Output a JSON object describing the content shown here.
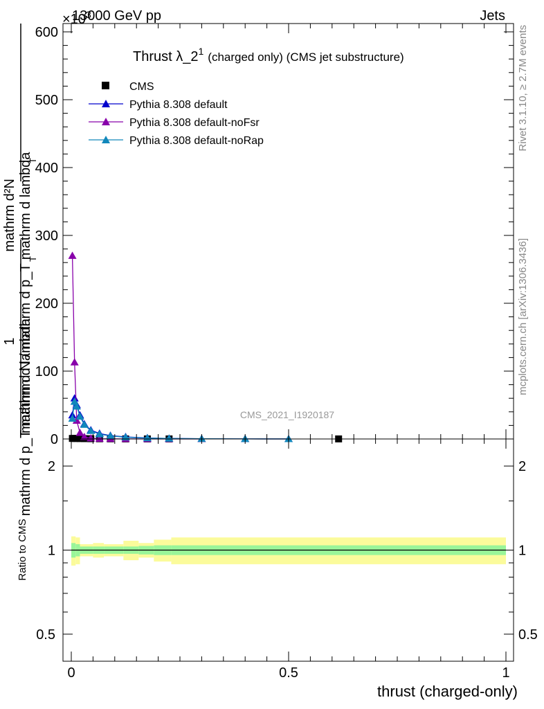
{
  "header": {
    "left": "13000 GeV pp",
    "right": "Jets"
  },
  "side_labels": {
    "rivet": "Rivet 3.1.10, ≥ 2.7M events",
    "mcplots": "mcplots.cern.ch [arXiv:1306.3436]"
  },
  "colors": {
    "cms": "#000000",
    "default": "#0000cc",
    "noFsr": "#8800aa",
    "noRap": "#1188bb",
    "band_inner": "#99f599",
    "band_outer": "#fbfb9b"
  },
  "chart_data": [
    {
      "type": "line",
      "title_main": "Thrust λ_2",
      "title_sup": "1",
      "title_rest": "(charged only) (CMS jet substructure)",
      "exponent_label": "×10",
      "exponent_sup": "3",
      "ylabel_top": "mathrm d²N",
      "ylabel_top_b": "mathrm d p_T mathrm d lambda",
      "ylabel_top_sub": "T",
      "ylabel_one": "1",
      "ylabel_bottom": "mathrm d N / mathrm d p_T mathrm d lambda",
      "ylabel_bottom_sub": "T",
      "watermark": "CMS_2021_I1920187",
      "xlim": [
        0,
        1
      ],
      "ylim": [
        0,
        600
      ],
      "yticks": [
        "0",
        "100",
        "200",
        "300",
        "400",
        "500",
        "600"
      ],
      "yticks_values": [
        0,
        100,
        200,
        300,
        400,
        500,
        600
      ],
      "legend": "top-left",
      "series": [
        {
          "name": "CMS",
          "marker": "square",
          "x": [
            0.0025,
            0.0075,
            0.0125,
            0.02,
            0.03,
            0.045,
            0.065,
            0.09,
            0.125,
            0.175,
            0.225,
            0.615
          ],
          "y": [
            0.8,
            0.8,
            0.8,
            0.6,
            0.5,
            0.4,
            0.3,
            0.2,
            0.1,
            0.1,
            0.1,
            0.1
          ]
        },
        {
          "name": "Pythia 8.308 default",
          "marker": "triangle",
          "x": [
            0.0025,
            0.0075,
            0.0125,
            0.02,
            0.03,
            0.045,
            0.065,
            0.09,
            0.125,
            0.175,
            0.225,
            0.3,
            0.4,
            0.5
          ],
          "y": [
            35,
            60,
            50,
            35,
            22,
            13,
            8,
            5,
            3,
            1.5,
            0.8,
            0.3,
            0.1,
            0.05
          ]
        },
        {
          "name": "Pythia 8.308 default-noFsr",
          "marker": "triangle",
          "x": [
            0.0025,
            0.0075,
            0.0125,
            0.02,
            0.03,
            0.045,
            0.065,
            0.09,
            0.125,
            0.175,
            0.225,
            0.3
          ],
          "y": [
            270,
            113,
            27,
            9,
            3,
            1,
            0.4,
            0.2,
            0.1,
            0.05,
            0.02,
            0.01
          ]
        },
        {
          "name": "Pythia 8.308 default-noRap",
          "marker": "triangle",
          "x": [
            0.0025,
            0.0075,
            0.0125,
            0.02,
            0.03,
            0.045,
            0.065,
            0.09,
            0.125,
            0.175,
            0.225,
            0.3,
            0.4,
            0.5
          ],
          "y": [
            30,
            55,
            48,
            33,
            21,
            12,
            7,
            4.5,
            2.5,
            1.3,
            0.7,
            0.3,
            0.1,
            0.05
          ]
        }
      ]
    },
    {
      "type": "area",
      "ylabel": "Ratio to CMS",
      "xlabel": "thrust (charged-only)",
      "xlim": [
        0,
        1
      ],
      "ylim": [
        0.4,
        2.5
      ],
      "ylog": true,
      "xticks": [
        "0",
        "0.5",
        "1"
      ],
      "xticks_values": [
        0,
        0.5,
        1
      ],
      "yticks": [
        "0.5",
        "1",
        "2"
      ],
      "yticks_values": [
        0.5,
        1,
        2
      ],
      "bands": {
        "edges": [
          0,
          0.01,
          0.02,
          0.05,
          0.075,
          0.12,
          0.155,
          0.19,
          0.23,
          1.0
        ],
        "inner": [
          0.06,
          0.05,
          0.03,
          0.03,
          0.03,
          0.03,
          0.035,
          0.04,
          0.04
        ],
        "outer": [
          0.12,
          0.11,
          0.05,
          0.06,
          0.05,
          0.08,
          0.06,
          0.09,
          0.11
        ]
      },
      "reference_line": 1
    }
  ]
}
